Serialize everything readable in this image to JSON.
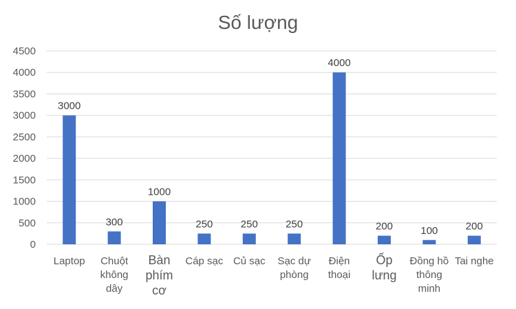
{
  "chart_data": {
    "type": "bar",
    "title": "Số lượng",
    "categories": [
      "Laptop",
      "Chuột không dây",
      "Bàn phím cơ",
      "Cáp sạc",
      "Củ sạc",
      "Sạc dự phòng",
      "Điện thoại",
      "Ốp lưng",
      "Đồng hồ thông minh",
      "Tai nghe"
    ],
    "values": [
      3000,
      300,
      1000,
      250,
      250,
      250,
      4000,
      200,
      100,
      200
    ],
    "data_labels": [
      "3000",
      "300",
      "1000",
      "250",
      "250",
      "250",
      "4000",
      "200",
      "100",
      "200"
    ],
    "yticks": [
      "0",
      "500",
      "1000",
      "1500",
      "2000",
      "2500",
      "3000",
      "3500",
      "4000",
      "4500"
    ],
    "ylim": [
      0,
      4500
    ],
    "grid": true,
    "legend": "none",
    "bar_color": "#4472c4"
  }
}
